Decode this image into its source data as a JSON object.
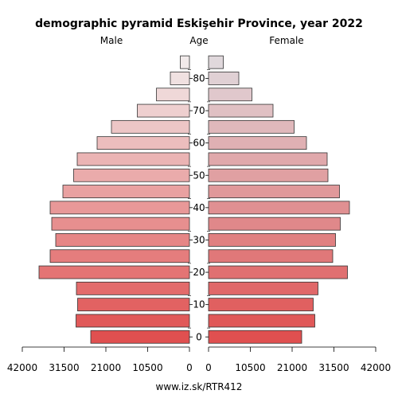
{
  "chart_data": {
    "type": "bar",
    "title": "demographic pyramid Eskişehir Province, year 2022",
    "left_label": "Male",
    "center_label": "Age",
    "right_label": "Female",
    "footer": "www.iz.sk/RTR412",
    "age_groups": [
      "0-4",
      "5-9",
      "10-14",
      "15-19",
      "20-24",
      "25-29",
      "30-34",
      "35-39",
      "40-44",
      "45-49",
      "50-54",
      "55-59",
      "60-64",
      "65-69",
      "70-74",
      "75-79",
      "80-84",
      "85+"
    ],
    "age_ticks": [
      "0",
      "10",
      "20",
      "30",
      "40",
      "50",
      "60",
      "70",
      "80"
    ],
    "male": [
      24800,
      28500,
      28100,
      28400,
      37800,
      35000,
      33600,
      34600,
      35000,
      31800,
      29100,
      28200,
      23200,
      19600,
      13100,
      8300,
      4800,
      2300
    ],
    "female": [
      23400,
      26700,
      26300,
      27500,
      34900,
      31200,
      31900,
      33100,
      35400,
      32900,
      30000,
      29800,
      24600,
      21500,
      16200,
      10900,
      7600,
      3700
    ],
    "x_tick_labels_left": [
      "42000",
      "31500",
      "21000",
      "10500",
      "0"
    ],
    "x_tick_labels_right": [
      "0",
      "10500",
      "21000",
      "31500",
      "42000"
    ],
    "xlim": [
      0,
      42000
    ],
    "colors": {
      "young": "#e05050",
      "old": "#e0d8dc",
      "male_old": "#f2f2f2",
      "outline": "#333333"
    }
  }
}
